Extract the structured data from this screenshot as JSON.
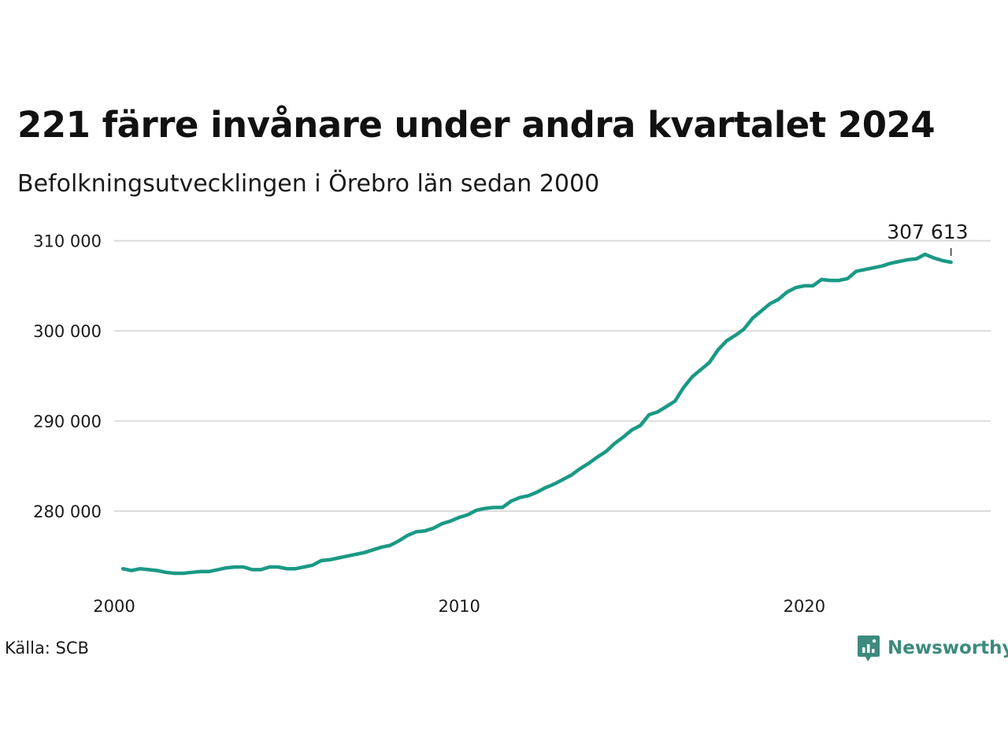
{
  "title": "221 färre invånare under andra kvartalet 2024",
  "subtitle": "Befolkningsutvecklingen i Örebro län sedan 2000",
  "source": "Källa: SCB",
  "brand": {
    "name": "Newsworthy",
    "icon": "newsworthy-logo-icon",
    "color": "#3d8a7e"
  },
  "chart_data": {
    "type": "line",
    "title": "221 färre invånare under andra kvartalet 2024",
    "subtitle": "Befolkningsutvecklingen i Örebro län sedan 2000",
    "xlabel": "",
    "ylabel": "",
    "xlim": [
      2000,
      2025.4
    ],
    "ylim": [
      271000,
      310500
    ],
    "x_ticks": [
      2000,
      2010,
      2020
    ],
    "x_tick_labels": [
      "2000",
      "2010",
      "2020"
    ],
    "y_ticks": [
      280000,
      290000,
      300000,
      310000
    ],
    "y_tick_labels": [
      "280 000",
      "290 000",
      "300 000",
      "310 000"
    ],
    "grid": "horizontal",
    "legend": "none",
    "line_color": "#1a9985",
    "end_label": "307 613",
    "series": [
      {
        "x": [
          2000.25,
          2000.5,
          2000.75,
          2001.0,
          2001.25,
          2001.5,
          2001.75,
          2002.0,
          2002.25,
          2002.5,
          2002.75,
          2003.0,
          2003.25,
          2003.5,
          2003.75,
          2004.0,
          2004.25,
          2004.5,
          2004.75,
          2005.0,
          2005.25,
          2005.5,
          2005.75,
          2006.0,
          2006.25,
          2006.5,
          2006.75,
          2007.0,
          2007.25,
          2007.5,
          2007.75,
          2008.0,
          2008.25,
          2008.5,
          2008.75,
          2009.0,
          2009.25,
          2009.5,
          2009.75,
          2010.0,
          2010.25,
          2010.5,
          2010.75,
          2011.0,
          2011.25,
          2011.5,
          2011.75,
          2012.0,
          2012.25,
          2012.5,
          2012.75,
          2013.0,
          2013.25,
          2013.5,
          2013.75,
          2014.0,
          2014.25,
          2014.5,
          2014.75,
          2015.0,
          2015.25,
          2015.5,
          2015.75,
          2016.0,
          2016.25,
          2016.5,
          2016.75,
          2017.0,
          2017.25,
          2017.5,
          2017.75,
          2018.0,
          2018.25,
          2018.5,
          2018.75,
          2019.0,
          2019.25,
          2019.5,
          2019.75,
          2020.0,
          2020.25,
          2020.5,
          2020.75,
          2021.0,
          2021.25,
          2021.5,
          2021.75,
          2022.0,
          2022.25,
          2022.5,
          2022.75,
          2023.0,
          2023.25,
          2023.5,
          2023.75,
          2024.0,
          2024.25
        ],
        "values": [
          273600,
          273400,
          273600,
          273500,
          273400,
          273200,
          273100,
          273100,
          273200,
          273300,
          273300,
          273500,
          273700,
          273800,
          273800,
          273500,
          273500,
          273800,
          273800,
          273600,
          273600,
          273800,
          274000,
          274500,
          274600,
          274800,
          275000,
          275200,
          275400,
          275700,
          276000,
          276200,
          276700,
          277300,
          277700,
          277800,
          278100,
          278600,
          278900,
          279300,
          279600,
          280100,
          280300,
          280400,
          280400,
          281100,
          281500,
          281700,
          282100,
          282600,
          283000,
          283500,
          284000,
          284700,
          285300,
          286000,
          286600,
          287500,
          288200,
          289000,
          289500,
          290700,
          291000,
          291600,
          292200,
          293700,
          294900,
          295700,
          296500,
          297900,
          298900,
          299500,
          300200,
          301400,
          302200,
          303000,
          303500,
          304300,
          304800,
          305000,
          305000,
          305700,
          305600,
          305600,
          305800,
          306600,
          306800,
          307000,
          307200,
          307500,
          307700,
          307900,
          308000,
          308500,
          308100,
          307800,
          307613
        ]
      }
    ]
  }
}
